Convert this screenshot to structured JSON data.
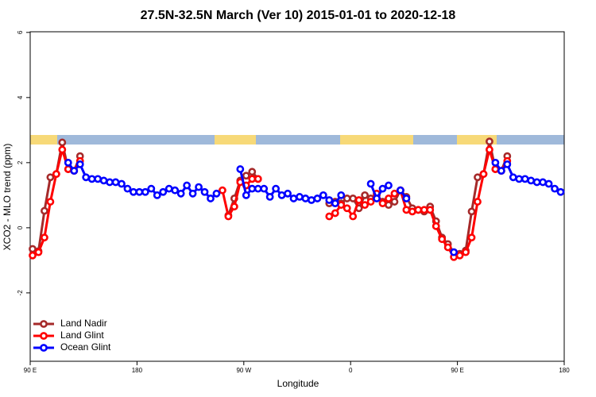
{
  "chart_data": {
    "type": "line",
    "title": "27.5N-32.5N March (Ver 10)   2015-01-01 to 2020-12-18",
    "xlabel": "Longitude",
    "ylabel": "XCO2 - MLO trend (ppm)",
    "xlim": [
      90,
      540
    ],
    "xticks": [
      {
        "value": 90,
        "label": "90 E"
      },
      180,
      {
        "value": 270,
        "label": "90 W"
      },
      {
        "value": 360,
        "label": "0"
      },
      {
        "value": 450,
        "label": "90 E"
      },
      {
        "value": 540,
        "label": "180"
      }
    ],
    "ylim": [
      -4.1,
      6.02
    ],
    "yticks": [
      -2,
      0,
      2,
      4,
      6
    ],
    "legend": "bottom-left",
    "series": [
      {
        "name": "Land Nadir",
        "color": "#a52a2a",
        "x": [
          92,
          97,
          102,
          107,
          112,
          117,
          122,
          127,
          132,
          null,
          257,
          262,
          267,
          272,
          277,
          282,
          null,
          342,
          347,
          352,
          357,
          362,
          367,
          372,
          377,
          382,
          387,
          392,
          397,
          402,
          407,
          412,
          417,
          422,
          427,
          432,
          437,
          442,
          447,
          452,
          457,
          462,
          467,
          472,
          477,
          482,
          487,
          492
        ],
        "values": [
          -0.65,
          -0.72,
          0.52,
          1.55,
          1.65,
          2.62,
          1.8,
          1.75,
          2.2,
          null,
          0.38,
          0.9,
          1.45,
          1.6,
          1.72,
          1.5,
          null,
          0.75,
          0.8,
          0.75,
          0.9,
          0.9,
          0.6,
          1.0,
          0.9,
          1.0,
          0.8,
          0.7,
          0.8,
          1.15,
          0.95,
          0.6,
          0.55,
          0.5,
          0.65,
          0.2,
          -0.3,
          -0.5,
          -0.75,
          -0.8,
          -0.7,
          0.5,
          1.55,
          1.65,
          2.65,
          1.8,
          1.75,
          2.2
        ]
      },
      {
        "name": "Land Glint",
        "color": "#ff0000",
        "x": [
          92,
          97,
          102,
          107,
          112,
          117,
          122,
          127,
          132,
          null,
          252,
          257,
          262,
          267,
          272,
          277,
          282,
          null,
          342,
          347,
          352,
          357,
          362,
          367,
          372,
          377,
          382,
          387,
          392,
          397,
          402,
          407,
          412,
          417,
          422,
          427,
          432,
          437,
          442,
          447,
          452,
          457,
          462,
          467,
          472,
          477,
          482,
          487,
          492
        ],
        "values": [
          -0.85,
          -0.75,
          -0.3,
          0.8,
          1.65,
          2.4,
          1.8,
          1.75,
          2.05,
          null,
          1.15,
          0.35,
          0.65,
          1.4,
          1.3,
          1.5,
          1.5,
          null,
          0.35,
          0.45,
          0.7,
          0.6,
          0.35,
          0.85,
          0.7,
          0.8,
          1.05,
          0.75,
          0.9,
          1.05,
          1.15,
          0.55,
          0.5,
          0.55,
          0.55,
          0.55,
          0.05,
          -0.35,
          -0.6,
          -0.9,
          -0.85,
          -0.75,
          -0.3,
          0.8,
          1.65,
          2.4,
          1.8,
          1.75,
          2.05
        ]
      },
      {
        "name": "Ocean Glint",
        "color": "#0000ff",
        "x": [
          122,
          127,
          132,
          137,
          142,
          147,
          152,
          157,
          162,
          167,
          172,
          177,
          182,
          187,
          192,
          197,
          202,
          207,
          212,
          217,
          222,
          227,
          232,
          237,
          242,
          247,
          null,
          267,
          272,
          277,
          282,
          287,
          292,
          297,
          302,
          307,
          312,
          317,
          322,
          327,
          332,
          337,
          342,
          347,
          352,
          null,
          377,
          382,
          387,
          392,
          null,
          402,
          407,
          null,
          447,
          null,
          482,
          487,
          492,
          497,
          502,
          507,
          512,
          517,
          522,
          527,
          532,
          537
        ],
        "values": [
          2.0,
          1.75,
          1.95,
          1.55,
          1.5,
          1.5,
          1.45,
          1.4,
          1.4,
          1.35,
          1.2,
          1.1,
          1.1,
          1.1,
          1.2,
          1.0,
          1.1,
          1.2,
          1.15,
          1.05,
          1.3,
          1.05,
          1.25,
          1.1,
          0.9,
          1.05,
          null,
          1.8,
          1.0,
          1.2,
          1.2,
          1.2,
          0.95,
          1.2,
          1.0,
          1.05,
          0.9,
          0.95,
          0.9,
          0.85,
          0.9,
          1.0,
          0.85,
          0.75,
          1.0,
          null,
          1.35,
          0.9,
          1.2,
          1.3,
          null,
          1.15,
          0.9,
          null,
          -0.75,
          null,
          2.0,
          1.75,
          1.95,
          1.55,
          1.5,
          1.5,
          1.45,
          1.4,
          1.4,
          1.35,
          1.2,
          1.1
        ]
      }
    ]
  }
}
